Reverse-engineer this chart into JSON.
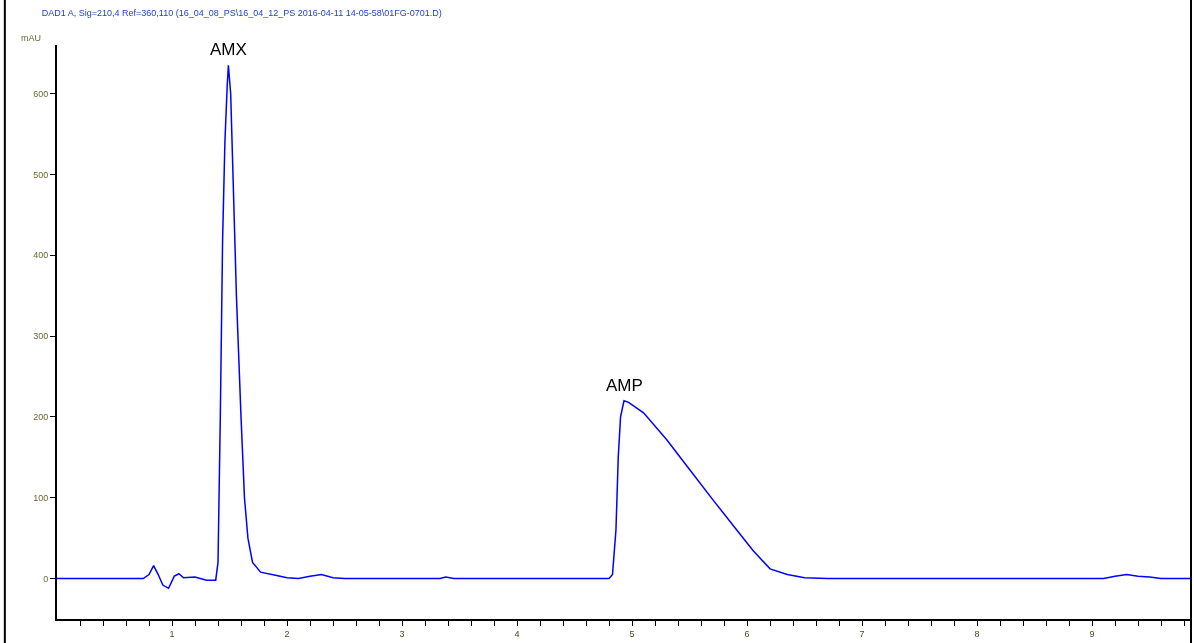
{
  "chart_data": {
    "type": "line",
    "title": "DAD1 A, Sig=210,4 Ref=360,110 (16_04_08_PS\\16_04_12_PS 2016-04-11 14-05-58\\01FG-0701.D)",
    "ylabel": "mAU",
    "x": [
      0,
      0.75,
      0.8,
      0.84,
      0.88,
      0.92,
      0.97,
      1.02,
      1.06,
      1.1,
      1.2,
      1.3,
      1.38,
      1.4,
      1.42,
      1.44,
      1.46,
      1.48,
      1.49,
      1.51,
      1.53,
      1.56,
      1.6,
      1.63,
      1.66,
      1.7,
      1.77,
      1.9,
      2.0,
      2.1,
      2.2,
      2.3,
      2.4,
      2.5,
      3.33,
      3.38,
      3.45,
      4.8,
      4.83,
      4.86,
      4.88,
      4.9,
      4.93,
      4.97,
      5.1,
      5.3,
      5.5,
      5.7,
      5.9,
      6.05,
      6.2,
      6.35,
      6.5,
      6.7,
      9.1,
      9.2,
      9.3,
      9.4,
      9.5,
      9.6,
      9.86
    ],
    "series": [
      {
        "color": "#0000ff",
        "values": [
          0,
          0,
          5,
          16,
          5,
          -8,
          -12,
          3,
          6,
          1,
          2,
          -2,
          -2,
          20,
          200,
          420,
          540,
          610,
          635,
          600,
          500,
          350,
          200,
          100,
          50,
          20,
          8,
          4,
          1,
          0,
          3,
          5,
          1,
          0,
          0,
          2,
          0,
          0,
          5,
          60,
          150,
          200,
          220,
          218,
          205,
          172,
          135,
          98,
          62,
          35,
          12,
          5,
          1,
          0,
          0,
          3,
          5,
          3,
          2,
          0,
          0
        ]
      }
    ],
    "annotations": [
      {
        "text": "AMX",
        "x": 1.49,
        "y": 635
      },
      {
        "text": "AMP",
        "x": 4.93,
        "y": 220
      }
    ],
    "xlim": [
      0,
      9.86
    ],
    "ylim": [
      -50,
      660
    ],
    "xticks": [
      {
        "value": 0.2,
        "label": null
      },
      {
        "value": 0.4,
        "label": null
      },
      {
        "value": 0.6,
        "label": null
      },
      {
        "value": 0.8,
        "label": null
      },
      1,
      {
        "value": 1.2,
        "label": null
      },
      {
        "value": 1.4,
        "label": null
      },
      {
        "value": 1.6,
        "label": null
      },
      {
        "value": 1.8,
        "label": null
      },
      2,
      {
        "value": 2.2,
        "label": null
      },
      {
        "value": 2.4,
        "label": null
      },
      {
        "value": 2.6,
        "label": null
      },
      {
        "value": 2.8,
        "label": null
      },
      3,
      {
        "value": 3.2,
        "label": null
      },
      {
        "value": 3.4,
        "label": null
      },
      {
        "value": 3.6,
        "label": null
      },
      {
        "value": 3.8,
        "label": null
      },
      4,
      {
        "value": 4.2,
        "label": null
      },
      {
        "value": 4.4,
        "label": null
      },
      {
        "value": 4.6,
        "label": null
      },
      {
        "value": 4.8,
        "label": null
      },
      5,
      {
        "value": 5.2,
        "label": null
      },
      {
        "value": 5.4,
        "label": null
      },
      {
        "value": 5.6,
        "label": null
      },
      {
        "value": 5.8,
        "label": null
      },
      6,
      {
        "value": 6.2,
        "label": null
      },
      {
        "value": 6.4,
        "label": null
      },
      {
        "value": 6.6,
        "label": null
      },
      {
        "value": 6.8,
        "label": null
      },
      7,
      {
        "value": 7.2,
        "label": null
      },
      {
        "value": 7.4,
        "label": null
      },
      {
        "value": 7.6,
        "label": null
      },
      {
        "value": 7.8,
        "label": null
      },
      8,
      {
        "value": 8.2,
        "label": null
      },
      {
        "value": 8.4,
        "label": null
      },
      {
        "value": 8.6,
        "label": null
      },
      {
        "value": 8.8,
        "label": null
      },
      9,
      {
        "value": 9.2,
        "label": null
      },
      {
        "value": 9.4,
        "label": null
      },
      {
        "value": 9.6,
        "label": null
      },
      {
        "value": 9.8,
        "label": null
      }
    ],
    "yticks": [
      0,
      100,
      200,
      300,
      400,
      500,
      600
    ],
    "marker": "none",
    "line_style": "solid"
  }
}
